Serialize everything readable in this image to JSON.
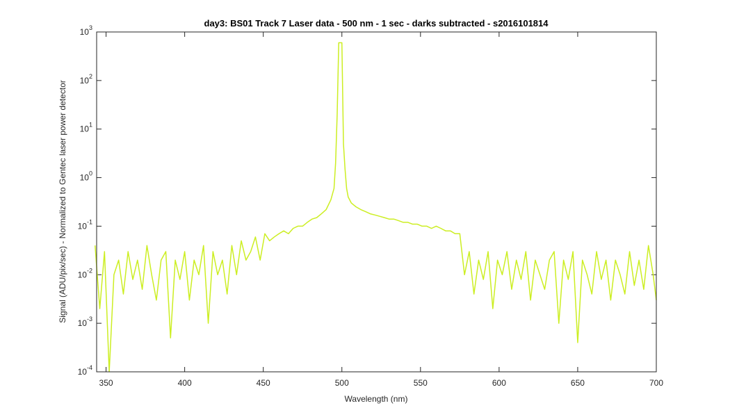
{
  "chart_data": {
    "type": "line",
    "title": "day3: BS01  Track 7 Laser data - 500 nm - 1 sec - darks subtracted - s2016101814",
    "xlabel": "Wavelength (nm)",
    "ylabel": "Signal (ADU/pix/sec) - Normalized to Gentec laser power detector",
    "log_y": true,
    "xlim": [
      344,
      700
    ],
    "xticks": [
      350,
      400,
      450,
      500,
      550,
      600,
      650,
      700
    ],
    "ylim": [
      0.0001,
      1000
    ],
    "yticks": [
      {
        "value": 0.0001,
        "label": "10",
        "exponent": "-4"
      },
      {
        "value": 0.001,
        "label": "10",
        "exponent": "-3"
      },
      {
        "value": 0.01,
        "label": "10",
        "exponent": "-2"
      },
      {
        "value": 0.1,
        "label": "10",
        "exponent": "-1"
      },
      {
        "value": 1,
        "label": "10",
        "exponent": "0"
      },
      {
        "value": 10,
        "label": "10",
        "exponent": "1"
      },
      {
        "value": 100,
        "label": "10",
        "exponent": "2"
      },
      {
        "value": 1000,
        "label": "10",
        "exponent": "3"
      }
    ],
    "x": [
      343,
      346,
      349,
      352,
      355,
      358,
      361,
      364,
      367,
      370,
      373,
      376,
      379,
      382,
      385,
      388,
      391,
      394,
      397,
      400,
      403,
      406,
      409,
      412,
      415,
      418,
      421,
      424,
      427,
      430,
      433,
      436,
      439,
      442,
      445,
      448,
      451,
      454,
      457,
      460,
      463,
      466,
      469,
      472,
      475,
      478,
      481,
      484,
      487,
      490,
      493,
      495,
      496,
      497,
      498,
      499,
      500,
      501,
      502,
      503,
      504,
      506,
      509,
      512,
      515,
      518,
      521,
      524,
      527,
      530,
      533,
      536,
      539,
      542,
      545,
      548,
      551,
      554,
      557,
      560,
      563,
      566,
      569,
      572,
      575,
      578,
      581,
      584,
      587,
      590,
      593,
      596,
      599,
      602,
      605,
      608,
      611,
      614,
      617,
      620,
      623,
      626,
      629,
      632,
      635,
      638,
      641,
      644,
      647,
      650,
      653,
      656,
      659,
      662,
      665,
      668,
      671,
      674,
      677,
      680,
      683,
      686,
      689,
      692,
      695,
      698,
      700
    ],
    "series": [
      {
        "color": "#ccee22",
        "values": [
          0.04,
          0.002,
          0.03,
          0.0001,
          0.01,
          0.02,
          0.004,
          0.03,
          0.008,
          0.02,
          0.005,
          0.04,
          0.01,
          0.003,
          0.02,
          0.03,
          0.0005,
          0.02,
          0.008,
          0.03,
          0.003,
          0.02,
          0.01,
          0.04,
          0.001,
          0.03,
          0.01,
          0.02,
          0.004,
          0.04,
          0.01,
          0.05,
          0.02,
          0.03,
          0.06,
          0.02,
          0.07,
          0.05,
          0.06,
          0.07,
          0.08,
          0.07,
          0.09,
          0.1,
          0.1,
          0.12,
          0.14,
          0.15,
          0.18,
          0.22,
          0.35,
          0.6,
          2,
          20,
          600,
          600,
          600,
          5,
          1.5,
          0.6,
          0.4,
          0.3,
          0.25,
          0.22,
          0.2,
          0.18,
          0.17,
          0.16,
          0.15,
          0.14,
          0.14,
          0.13,
          0.12,
          0.12,
          0.11,
          0.11,
          0.1,
          0.1,
          0.09,
          0.1,
          0.09,
          0.08,
          0.08,
          0.07,
          0.07,
          0.01,
          0.03,
          0.004,
          0.02,
          0.008,
          0.03,
          0.002,
          0.02,
          0.01,
          0.03,
          0.005,
          0.02,
          0.008,
          0.03,
          0.003,
          0.02,
          0.01,
          0.005,
          0.02,
          0.03,
          0.001,
          0.02,
          0.008,
          0.03,
          0.0004,
          0.02,
          0.01,
          0.004,
          0.03,
          0.008,
          0.02,
          0.003,
          0.02,
          0.01,
          0.004,
          0.03,
          0.006,
          0.02,
          0.005,
          0.04,
          0.01,
          0.003
        ]
      }
    ]
  }
}
